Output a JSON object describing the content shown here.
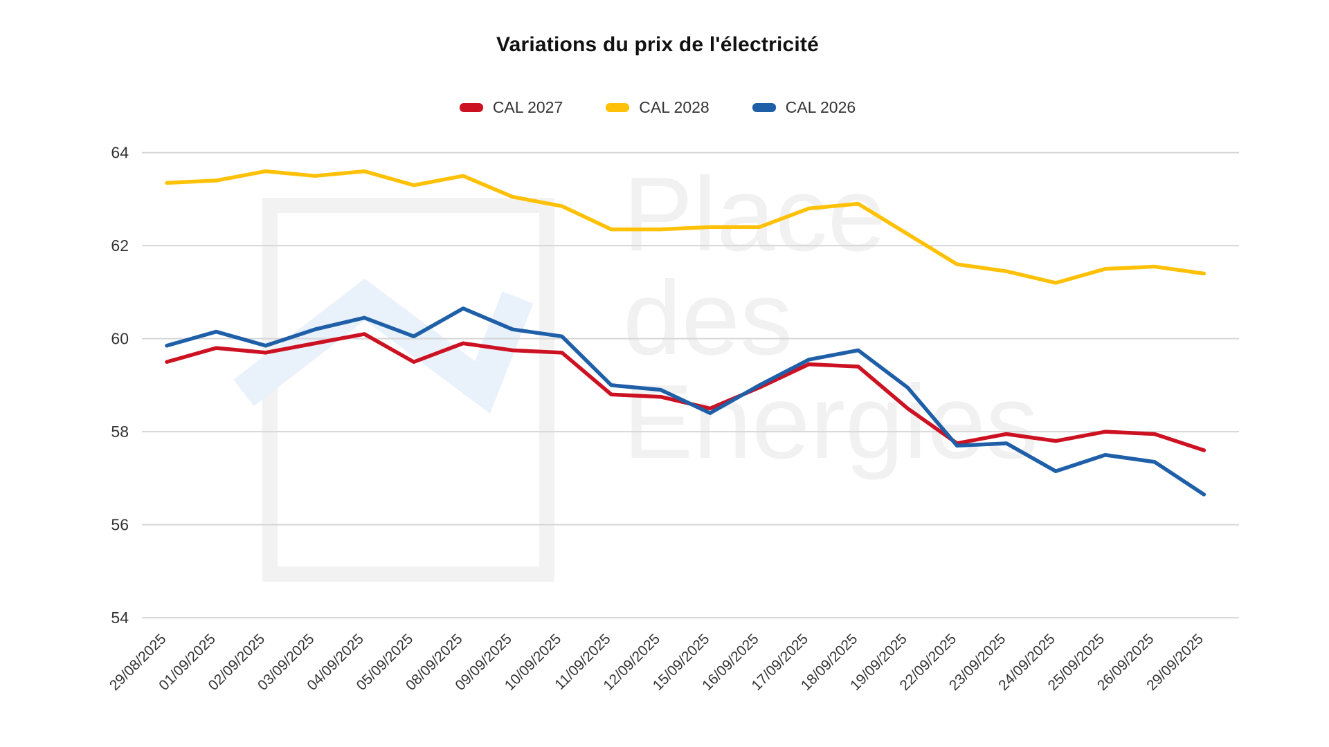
{
  "title": "Variations du prix de l'électricité",
  "watermark": {
    "lines": [
      "Place",
      "des",
      "Energies"
    ],
    "text_color": "#f1f1f1",
    "logo_color": "#f2f2f2",
    "zigzag_color": "#e9f1fb"
  },
  "axes": {
    "y_tick_labels": [
      "64",
      "62",
      "60",
      "58",
      "56",
      "54"
    ],
    "text_color": "#333333",
    "gridline_color": "#d6d6d6"
  },
  "chart_data": {
    "type": "line",
    "title": "Variations du prix de l'électricité",
    "x": [
      "29/08/2025",
      "01/09/2025",
      "02/09/2025",
      "03/09/2025",
      "04/09/2025",
      "05/09/2025",
      "08/09/2025",
      "09/09/2025",
      "10/09/2025",
      "11/09/2025",
      "12/09/2025",
      "15/09/2025",
      "16/09/2025",
      "17/09/2025",
      "18/09/2025",
      "19/09/2025",
      "22/09/2025",
      "23/09/2025",
      "24/09/2025",
      "25/09/2025",
      "26/09/2025",
      "29/09/2025"
    ],
    "series": [
      {
        "name": "CAL 2027",
        "color": "#cc1122",
        "values": [
          59.5,
          59.8,
          59.7,
          59.9,
          60.1,
          59.5,
          59.9,
          59.75,
          59.7,
          58.8,
          58.75,
          58.5,
          58.95,
          59.45,
          59.4,
          58.5,
          57.75,
          57.95,
          57.8,
          58.0,
          57.95,
          57.6
        ]
      },
      {
        "name": "CAL 2028",
        "color": "#ffc107",
        "values": [
          63.35,
          63.4,
          63.6,
          63.5,
          63.6,
          63.3,
          63.5,
          63.05,
          62.85,
          62.35,
          62.35,
          62.4,
          62.4,
          62.8,
          62.9,
          62.25,
          61.6,
          61.45,
          61.2,
          61.5,
          61.55,
          61.4
        ]
      },
      {
        "name": "CAL 2026",
        "color": "#1e5fa8",
        "values": [
          59.85,
          60.15,
          59.85,
          60.2,
          60.45,
          60.05,
          60.65,
          60.2,
          60.05,
          59.0,
          58.9,
          58.4,
          59.0,
          59.55,
          59.75,
          58.95,
          57.7,
          57.75,
          57.15,
          57.5,
          57.35,
          56.65
        ]
      }
    ],
    "xlabel": "",
    "ylabel": "",
    "ylim": [
      54,
      64
    ],
    "y_ticks": [
      64,
      62,
      60,
      58,
      56,
      54
    ],
    "grid": true,
    "legend_position": "top",
    "x_tick_rotation": -45
  }
}
